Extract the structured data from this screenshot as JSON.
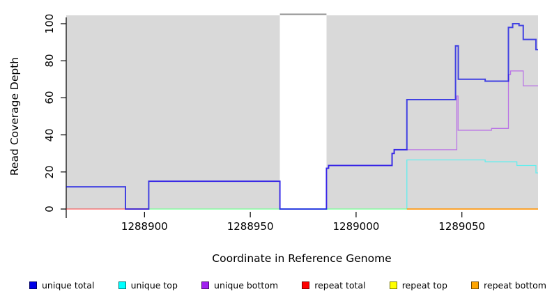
{
  "chart_data": {
    "type": "line",
    "subtype": "step-coverage",
    "title": "",
    "xlabel": "Coordinate in Reference Genome",
    "ylabel": "Read Coverage Depth",
    "xlim": [
      1288863,
      1289086
    ],
    "ylim": [
      0,
      106
    ],
    "x_ticks": [
      1288900,
      1288950,
      1289000,
      1289050
    ],
    "y_ticks": [
      0,
      20,
      40,
      60,
      80,
      100
    ],
    "grid": false,
    "legend_position": "bottom",
    "background_regions": [
      {
        "name": "covered-region",
        "x0": 1288863,
        "x1": 1289086,
        "y0": 0,
        "y1": 104.5,
        "color": "#d9d9d9"
      },
      {
        "name": "gap-region",
        "x0": 1288964,
        "x1": 1288986,
        "y0": 0,
        "y1": 104.5,
        "color": "#ffffff",
        "top_line_color": "#909090"
      }
    ],
    "series": [
      {
        "name": "repeat total",
        "color": "#FF0000",
        "opacity": 0.6,
        "width": 1.3,
        "points": [
          [
            1288863,
            0
          ]
        ],
        "x_end": 1288902
      },
      {
        "name": "repeat top",
        "color": "#FFFF00",
        "opacity": 0.8,
        "width": 1.3,
        "points": [
          [
            1288902,
            0
          ]
        ],
        "x_end": 1289086
      },
      {
        "name": "unique bottom",
        "color": "#A020F0",
        "opacity": 0.55,
        "width": 1.3,
        "points": [
          [
            1288902,
            15
          ],
          [
            1288964,
            0
          ],
          [
            1288986,
            22
          ],
          [
            1288987,
            23.5
          ],
          [
            1289017,
            30
          ],
          [
            1289018,
            32
          ],
          [
            1289047.6,
            61
          ],
          [
            1289048.2,
            42.5
          ],
          [
            1289064,
            43.5
          ],
          [
            1289072,
            72.5
          ],
          [
            1289073,
            74.5
          ],
          [
            1289079,
            66.5
          ]
        ],
        "x_end": 1289086
      },
      {
        "name": "unique top",
        "color": "#00FFFF",
        "opacity": 0.55,
        "width": 1.3,
        "points": [
          [
            1288902,
            0
          ],
          [
            1289024,
            26.5
          ],
          [
            1289061,
            25.5
          ],
          [
            1289076,
            23.5
          ],
          [
            1289085,
            19.5
          ]
        ],
        "x_end": 1289086
      },
      {
        "name": "repeat bottom",
        "color": "#FF8C00",
        "opacity": 1,
        "width": 1.5,
        "points": [
          [
            1289024,
            0
          ]
        ],
        "x_end": 1289086
      },
      {
        "name": "unique total",
        "color": "#0000E6",
        "opacity": 0.7,
        "width": 2,
        "points": [
          [
            1288863,
            12
          ],
          [
            1288891,
            0
          ],
          [
            1288902,
            15
          ],
          [
            1288964,
            0
          ],
          [
            1288986,
            22
          ],
          [
            1288987,
            23.5
          ],
          [
            1289017,
            30
          ],
          [
            1289018,
            32
          ],
          [
            1289024,
            59
          ],
          [
            1289047,
            88
          ],
          [
            1289048.3,
            70
          ],
          [
            1289061,
            69
          ],
          [
            1289072,
            98
          ],
          [
            1289074,
            100
          ],
          [
            1289077,
            99
          ],
          [
            1289079,
            91.5
          ],
          [
            1289085,
            86
          ]
        ],
        "x_end": 1289086
      }
    ]
  },
  "legend": {
    "items": [
      {
        "label": "unique total",
        "color": "#0000E6"
      },
      {
        "label": "unique top",
        "color": "#00FFFF"
      },
      {
        "label": "unique bottom",
        "color": "#A020F0"
      },
      {
        "label": "repeat total",
        "color": "#FF0000"
      },
      {
        "label": "repeat top",
        "color": "#FFFF00"
      },
      {
        "label": "repeat bottom",
        "color": "#FFA500"
      }
    ]
  },
  "axis_colors": {
    "line": "#000000",
    "text": "#000000"
  }
}
